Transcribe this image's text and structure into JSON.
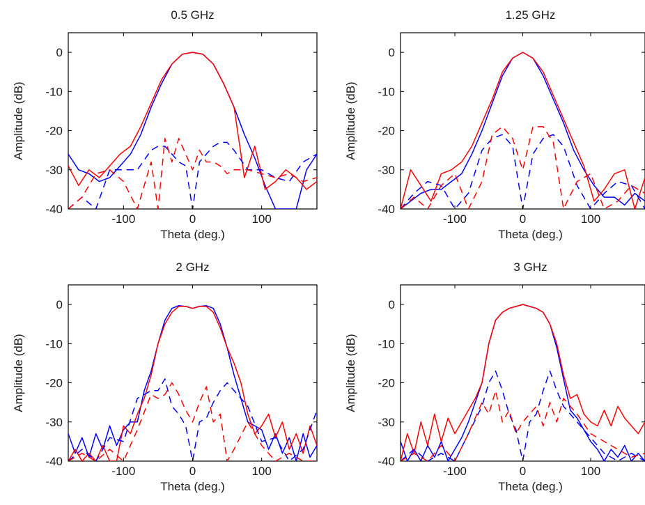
{
  "chart_data": [
    {
      "type": "line",
      "title": "0.5 GHz",
      "xlabel": "Theta (deg.)",
      "ylabel": "Amplitude (dB)",
      "xlim": [
        -180,
        180
      ],
      "ylim": [
        -40,
        5
      ],
      "xticks": [
        -100,
        0,
        100
      ],
      "yticks": [
        0,
        -10,
        -20,
        -30,
        -40
      ],
      "series": [
        {
          "color": "#0000ff",
          "style": "solid",
          "x": [
            -180,
            -165,
            -150,
            -135,
            -120,
            -105,
            -90,
            -75,
            -60,
            -45,
            -30,
            -15,
            0,
            15,
            30,
            45,
            60,
            75,
            90,
            105,
            120,
            135,
            150,
            165,
            180
          ],
          "y": [
            -26,
            -30,
            -31,
            -33,
            -32,
            -29,
            -26,
            -21,
            -14,
            -8,
            -3,
            -0.5,
            0,
            -0.5,
            -3,
            -8,
            -14,
            -21,
            -27,
            -34,
            -40,
            -40,
            -40,
            -30,
            -26
          ]
        },
        {
          "color": "#ff0000",
          "style": "solid",
          "x": [
            -180,
            -165,
            -150,
            -135,
            -120,
            -105,
            -90,
            -75,
            -60,
            -45,
            -30,
            -15,
            0,
            15,
            30,
            45,
            60,
            75,
            90,
            105,
            120,
            135,
            150,
            165,
            180
          ],
          "y": [
            -29,
            -34,
            -30,
            -32,
            -29,
            -26,
            -24,
            -19,
            -13,
            -7,
            -3,
            -0.5,
            0,
            -0.5,
            -3,
            -8,
            -14,
            -32,
            -24,
            -35,
            -33,
            -30,
            -32,
            -35,
            -33
          ]
        },
        {
          "color": "#0000ff",
          "style": "dashed",
          "x": [
            -180,
            -160,
            -140,
            -120,
            -100,
            -80,
            -60,
            -50,
            -40,
            -30,
            -20,
            -10,
            0,
            10,
            20,
            30,
            40,
            50,
            60,
            80,
            100,
            120,
            140,
            160,
            180
          ],
          "y": [
            -40,
            -37,
            -40,
            -30,
            -30,
            -30,
            -25,
            -24,
            -24,
            -26,
            -28,
            -29,
            -40,
            -28,
            -26,
            -24,
            -23,
            -23,
            -25,
            -30,
            -30,
            -32,
            -33,
            -28,
            -26
          ]
        },
        {
          "color": "#ff0000",
          "style": "dashed",
          "x": [
            -180,
            -160,
            -140,
            -120,
            -100,
            -80,
            -60,
            -50,
            -40,
            -30,
            -20,
            -10,
            0,
            10,
            20,
            30,
            40,
            50,
            60,
            80,
            100,
            120,
            140,
            160,
            180
          ],
          "y": [
            -40,
            -37,
            -31,
            -30,
            -33,
            -40,
            -28,
            -40,
            -22,
            -28,
            -22,
            -26,
            -30,
            -25,
            -28,
            -28,
            -29,
            -31,
            -30,
            -30,
            -31,
            -32,
            -31,
            -33,
            -32
          ]
        }
      ]
    },
    {
      "type": "line",
      "title": "1.25 GHz",
      "xlabel": "Theta (deg.)",
      "ylabel": "Amplitude (dB)",
      "xlim": [
        -180,
        180
      ],
      "ylim": [
        -40,
        5
      ],
      "xticks": [
        -100,
        0,
        100
      ],
      "yticks": [
        0,
        -10,
        -20,
        -30,
        -40
      ],
      "series": [
        {
          "color": "#0000ff",
          "style": "solid",
          "x": [
            -180,
            -165,
            -150,
            -135,
            -120,
            -105,
            -90,
            -75,
            -60,
            -45,
            -30,
            -15,
            0,
            15,
            30,
            45,
            60,
            75,
            90,
            105,
            120,
            135,
            150,
            165,
            180
          ],
          "y": [
            -40,
            -38,
            -36,
            -35,
            -35,
            -33,
            -31,
            -26,
            -20,
            -13,
            -6,
            -1.5,
            0,
            -1.5,
            -6,
            -12,
            -18,
            -25,
            -30,
            -34,
            -37,
            -37,
            -39,
            -36,
            -38
          ]
        },
        {
          "color": "#ff0000",
          "style": "solid",
          "x": [
            -180,
            -165,
            -150,
            -135,
            -120,
            -105,
            -90,
            -75,
            -60,
            -45,
            -30,
            -15,
            0,
            15,
            30,
            45,
            60,
            75,
            90,
            105,
            120,
            135,
            150,
            165,
            180
          ],
          "y": [
            -40,
            -30,
            -34,
            -38,
            -31,
            -30,
            -28,
            -24,
            -18,
            -12,
            -5,
            -1.5,
            0,
            -1.5,
            -5,
            -11,
            -17,
            -23,
            -29,
            -38,
            -35,
            -31,
            -30,
            -40,
            -32
          ]
        },
        {
          "color": "#0000ff",
          "style": "dashed",
          "x": [
            -180,
            -160,
            -140,
            -120,
            -100,
            -80,
            -60,
            -45,
            -30,
            -15,
            0,
            15,
            30,
            45,
            60,
            80,
            100,
            120,
            140,
            160,
            180
          ],
          "y": [
            -40,
            -36,
            -33,
            -34,
            -40,
            -36,
            -25,
            -22,
            -21,
            -24,
            -40,
            -26,
            -22,
            -21,
            -24,
            -34,
            -40,
            -36,
            -33,
            -34,
            -40
          ]
        },
        {
          "color": "#ff0000",
          "style": "dashed",
          "x": [
            -180,
            -160,
            -140,
            -120,
            -100,
            -80,
            -60,
            -45,
            -30,
            -15,
            0,
            15,
            30,
            45,
            60,
            80,
            100,
            120,
            140,
            160,
            180
          ],
          "y": [
            -40,
            -37,
            -40,
            -34,
            -31,
            -40,
            -33,
            -21,
            -19,
            -22,
            -30,
            -19,
            -19,
            -23,
            -40,
            -33,
            -31,
            -40,
            -38,
            -34,
            -36
          ]
        }
      ]
    },
    {
      "type": "line",
      "title": "2 GHz",
      "xlabel": "Theta (deg.)",
      "ylabel": "Amplitude (dB)",
      "xlim": [
        -180,
        180
      ],
      "ylim": [
        -40,
        5
      ],
      "xticks": [
        -100,
        0,
        100
      ],
      "yticks": [
        0,
        -10,
        -20,
        -30,
        -40
      ],
      "series": [
        {
          "color": "#0000ff",
          "style": "solid",
          "x": [
            -180,
            -170,
            -160,
            -150,
            -140,
            -130,
            -120,
            -110,
            -100,
            -90,
            -80,
            -70,
            -60,
            -50,
            -40,
            -30,
            -20,
            -10,
            0,
            10,
            20,
            30,
            40,
            50,
            60,
            70,
            80,
            90,
            100,
            110,
            120,
            130,
            140,
            150,
            160,
            170,
            180
          ],
          "y": [
            -33,
            -38,
            -34,
            -39,
            -33,
            -37,
            -31,
            -36,
            -32,
            -30,
            -30,
            -22,
            -17,
            -10,
            -4,
            -1,
            -0.3,
            -0.5,
            -1,
            -0.5,
            -0.3,
            -1,
            -5,
            -11,
            -18,
            -24,
            -30,
            -31,
            -32,
            -37,
            -33,
            -38,
            -34,
            -40,
            -33,
            -39,
            -36
          ]
        },
        {
          "color": "#ff0000",
          "style": "solid",
          "x": [
            -180,
            -170,
            -160,
            -150,
            -140,
            -130,
            -120,
            -110,
            -100,
            -90,
            -80,
            -70,
            -60,
            -50,
            -40,
            -30,
            -20,
            -10,
            0,
            10,
            20,
            30,
            40,
            50,
            60,
            70,
            80,
            90,
            100,
            110,
            120,
            130,
            140,
            150,
            160,
            170,
            180
          ],
          "y": [
            -40,
            -37,
            -40,
            -38,
            -40,
            -36,
            -40,
            -40,
            -31,
            -33,
            -28,
            -24,
            -18,
            -10,
            -5,
            -2,
            -0.5,
            -0.5,
            -1,
            -0.5,
            -0.5,
            -2,
            -6,
            -11,
            -15,
            -20,
            -28,
            -33,
            -31,
            -28,
            -34,
            -30,
            -37,
            -33,
            -38,
            -31,
            -36
          ]
        },
        {
          "color": "#0000ff",
          "style": "dashed",
          "x": [
            -180,
            -160,
            -140,
            -120,
            -100,
            -80,
            -60,
            -50,
            -40,
            -30,
            -20,
            -10,
            0,
            10,
            20,
            30,
            40,
            50,
            60,
            80,
            100,
            120,
            140,
            160,
            180
          ],
          "y": [
            -40,
            -37,
            -40,
            -34,
            -35,
            -24,
            -22,
            -22,
            -19,
            -26,
            -28,
            -31,
            -40,
            -30,
            -29,
            -25,
            -22,
            -20,
            -22,
            -26,
            -35,
            -34,
            -40,
            -37,
            -27
          ]
        },
        {
          "color": "#ff0000",
          "style": "dashed",
          "x": [
            -180,
            -160,
            -140,
            -120,
            -100,
            -80,
            -60,
            -50,
            -40,
            -30,
            -20,
            -10,
            0,
            10,
            20,
            30,
            40,
            50,
            60,
            80,
            100,
            120,
            140,
            160,
            180
          ],
          "y": [
            -40,
            -38,
            -40,
            -37,
            -40,
            -32,
            -23,
            -24,
            -23,
            -20,
            -23,
            -27,
            -30,
            -25,
            -21,
            -30,
            -28,
            -40,
            -37,
            -30,
            -36,
            -40,
            -38,
            -40,
            -40
          ]
        }
      ]
    },
    {
      "type": "line",
      "title": "3 GHz",
      "xlabel": "Theta (deg.)",
      "ylabel": "Amplitude (dB)",
      "xlim": [
        -180,
        180
      ],
      "ylim": [
        -40,
        5
      ],
      "xticks": [
        -100,
        0,
        100
      ],
      "yticks": [
        0,
        -10,
        -20,
        -30,
        -40
      ],
      "series": [
        {
          "color": "#0000ff",
          "style": "solid",
          "x": [
            -180,
            -170,
            -160,
            -150,
            -140,
            -130,
            -120,
            -110,
            -100,
            -90,
            -80,
            -70,
            -60,
            -50,
            -40,
            -30,
            -20,
            -10,
            0,
            10,
            20,
            30,
            40,
            50,
            60,
            70,
            80,
            90,
            100,
            110,
            120,
            130,
            140,
            150,
            160,
            170,
            180
          ],
          "y": [
            -35,
            -40,
            -37,
            -40,
            -36,
            -39,
            -35,
            -40,
            -37,
            -34,
            -30,
            -25,
            -20,
            -10,
            -4,
            -2,
            -1,
            -0.5,
            0,
            -0.5,
            -1,
            -2,
            -5,
            -11,
            -19,
            -27,
            -29,
            -32,
            -35,
            -37,
            -40,
            -37,
            -39,
            -36,
            -40,
            -38,
            -40
          ]
        },
        {
          "color": "#ff0000",
          "style": "solid",
          "x": [
            -180,
            -170,
            -160,
            -150,
            -140,
            -130,
            -120,
            -110,
            -100,
            -90,
            -80,
            -70,
            -60,
            -50,
            -40,
            -30,
            -20,
            -10,
            0,
            10,
            20,
            30,
            40,
            50,
            60,
            70,
            80,
            90,
            100,
            110,
            120,
            130,
            140,
            150,
            160,
            170,
            180
          ],
          "y": [
            -40,
            -33,
            -38,
            -30,
            -36,
            -28,
            -35,
            -29,
            -33,
            -30,
            -27,
            -24,
            -20,
            -10,
            -4,
            -2,
            -1,
            -0.5,
            0,
            -0.5,
            -1,
            -2,
            -5,
            -10,
            -18,
            -24,
            -23,
            -28,
            -30,
            -31,
            -27,
            -31,
            -26,
            -29,
            -31,
            -33,
            -30
          ]
        },
        {
          "color": "#0000ff",
          "style": "dashed",
          "x": [
            -180,
            -160,
            -140,
            -120,
            -100,
            -80,
            -60,
            -50,
            -40,
            -30,
            -20,
            -10,
            0,
            10,
            20,
            30,
            40,
            50,
            60,
            80,
            100,
            120,
            140,
            160,
            180
          ],
          "y": [
            -40,
            -37,
            -40,
            -38,
            -40,
            -33,
            -26,
            -20,
            -17,
            -22,
            -28,
            -32,
            -40,
            -30,
            -28,
            -22,
            -17,
            -22,
            -26,
            -30,
            -34,
            -38,
            -40,
            -38,
            -40
          ]
        },
        {
          "color": "#ff0000",
          "style": "dashed",
          "x": [
            -180,
            -160,
            -140,
            -120,
            -100,
            -80,
            -60,
            -50,
            -40,
            -30,
            -20,
            -10,
            0,
            10,
            20,
            30,
            40,
            50,
            60,
            80,
            100,
            120,
            140,
            160,
            180
          ],
          "y": [
            -40,
            -38,
            -40,
            -36,
            -40,
            -33,
            -25,
            -28,
            -22,
            -30,
            -27,
            -33,
            -30,
            -28,
            -26,
            -31,
            -25,
            -30,
            -24,
            -28,
            -33,
            -35,
            -37,
            -39,
            -38
          ]
        }
      ]
    }
  ]
}
